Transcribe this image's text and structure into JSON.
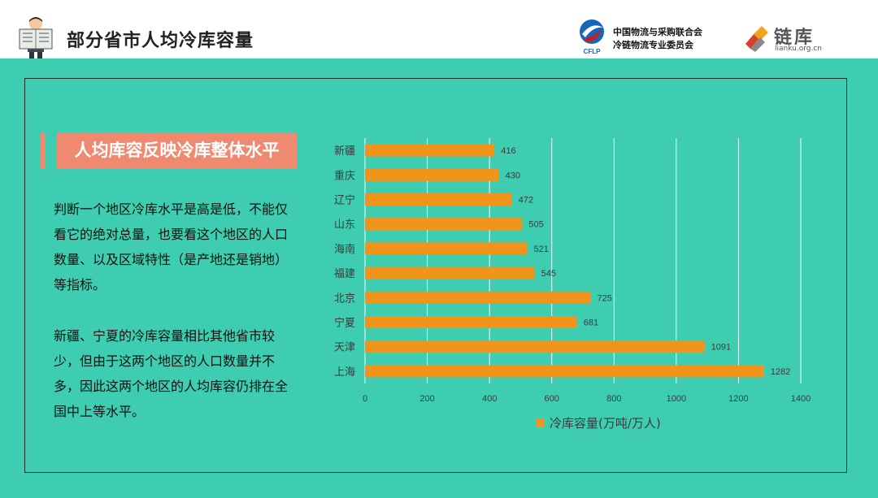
{
  "header": {
    "title": "部分省市人均冷库容量",
    "org_line1": "中国物流与采购联合会",
    "org_line2": "冷链物流专业委员会",
    "org_abbr": "CFLP",
    "brand_name": "链库",
    "brand_url": "lianku.org.cn"
  },
  "content": {
    "subtitle": "人均库容反映冷库整体水平",
    "paragraph1": "判断一个地区冷库水平是高是低，不能仅看它的绝对总量，也要看这个地区的人口数量、以及区域特性（是产地还是销地）等指标。",
    "paragraph2": "新疆、宁夏的冷库容量相比其他省市较少，但由于这两个地区的人口数量并不多，因此这两个地区的人均库容仍排在全国中上等水平。"
  },
  "colors": {
    "background": "#3ecdb0",
    "bar": "#f0941c",
    "accent": "#ef8a70",
    "grid": "#ffffff"
  },
  "chart_data": {
    "type": "bar",
    "orientation": "horizontal",
    "categories": [
      "新疆",
      "重庆",
      "辽宁",
      "山东",
      "海南",
      "福建",
      "北京",
      "宁夏",
      "天津",
      "上海"
    ],
    "series": [
      {
        "name": "冷库容量(万吨/万人)",
        "values": [
          416,
          430,
          472,
          505,
          521,
          545,
          725,
          681,
          1091,
          1282
        ]
      }
    ],
    "xlim": [
      0,
      1400
    ],
    "xticks": [
      0,
      200,
      400,
      600,
      800,
      1000,
      1200,
      1400
    ],
    "grid": true,
    "legend_position": "bottom"
  }
}
